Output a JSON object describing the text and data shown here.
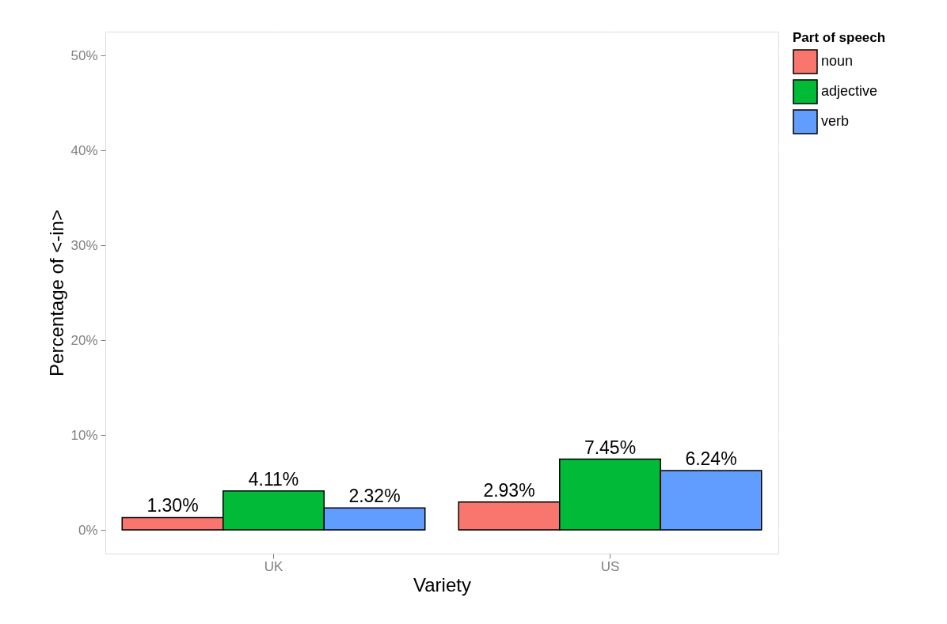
{
  "chart_data": {
    "type": "bar",
    "xlabel": "Variety",
    "ylabel": "Percentage of <-in>",
    "legend_title": "Part of speech",
    "categories": [
      "UK",
      "US"
    ],
    "series": [
      {
        "name": "noun",
        "color": "#f8766d",
        "values": [
          1.3,
          2.93
        ],
        "value_labels": [
          "1.30%",
          "2.93%"
        ]
      },
      {
        "name": "adjective",
        "color": "#00ba38",
        "values": [
          4.11,
          7.45
        ],
        "value_labels": [
          "4.11%",
          "7.45%"
        ]
      },
      {
        "name": "verb",
        "color": "#619cff",
        "values": [
          2.32,
          6.24
        ],
        "value_labels": [
          "2.32%",
          "6.24%"
        ]
      }
    ],
    "ylim": [
      -2.5,
      52.5
    ],
    "yticks": [
      {
        "value": 0,
        "label": "0%"
      },
      {
        "value": 10,
        "label": "10%"
      },
      {
        "value": 20,
        "label": "20%"
      },
      {
        "value": 30,
        "label": "30%"
      },
      {
        "value": 40,
        "label": "40%"
      },
      {
        "value": 50,
        "label": "50%"
      }
    ],
    "grid": true,
    "legend": "right"
  }
}
